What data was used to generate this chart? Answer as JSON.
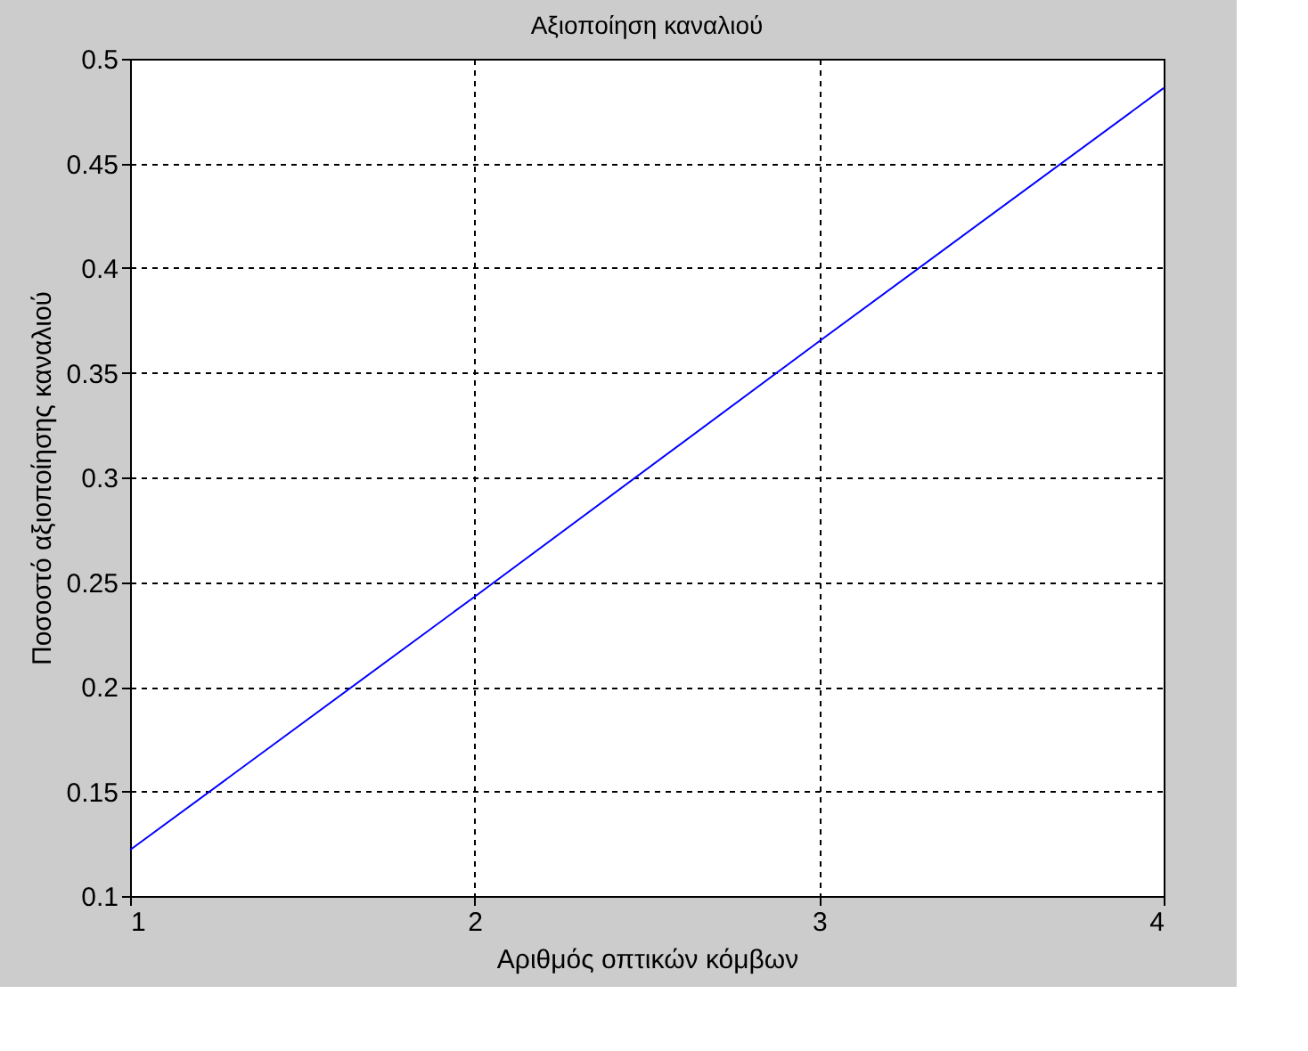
{
  "chart_data": {
    "type": "line",
    "title": "Αξιοποίηση καναλιού",
    "xlabel": "Αριθμός οπτικών κόμβων",
    "ylabel": "Ποσοστό αξιοποίησης καναλιού",
    "x": [
      1,
      2,
      3,
      4
    ],
    "series": [
      {
        "color": "#0000ff",
        "values": [
          0.122,
          0.243,
          0.365,
          0.486
        ]
      }
    ],
    "xlim": [
      1,
      4
    ],
    "xticks": [
      1,
      2,
      3,
      4
    ],
    "ylim": [
      0.1,
      0.5
    ],
    "yticks": [
      0.1,
      0.15,
      0.2,
      0.25,
      0.3,
      0.35,
      0.4,
      0.45,
      0.5
    ],
    "grid": true,
    "marker": "none",
    "line_style": "solid"
  }
}
